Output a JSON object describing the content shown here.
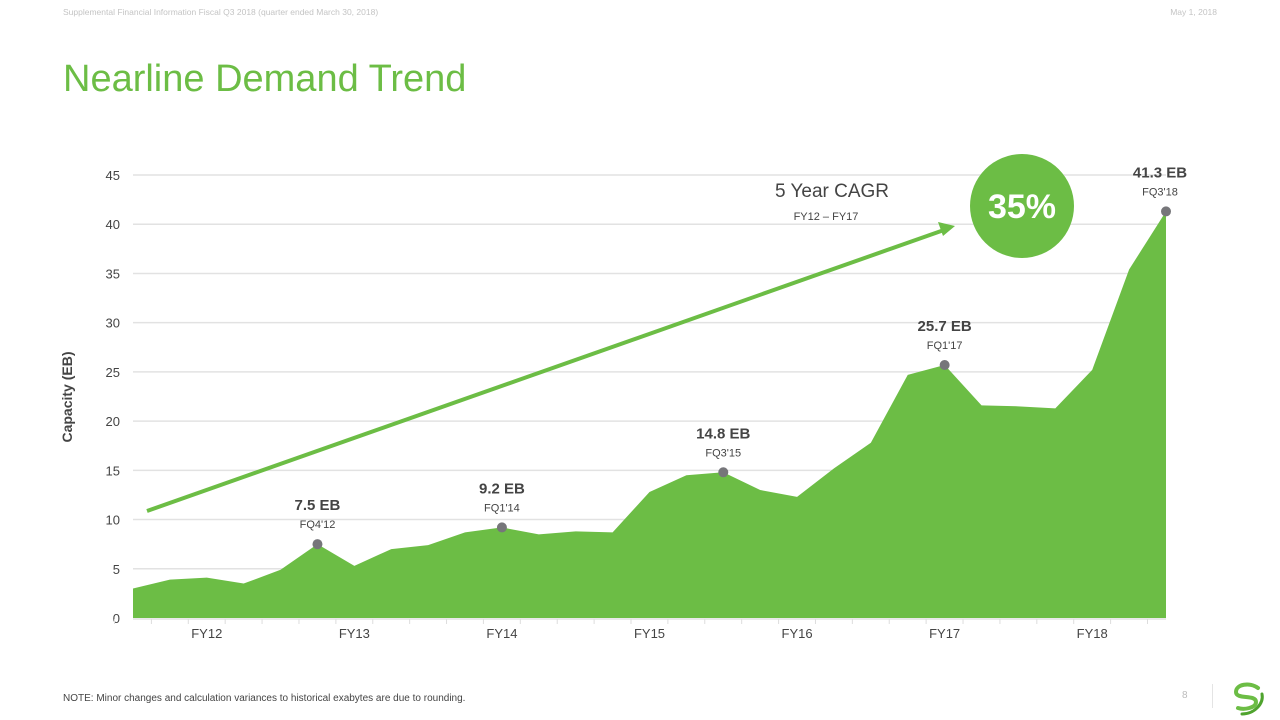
{
  "header": {
    "left_text": "Supplemental Financial Information Fiscal Q3 2018 (quarter ended March 30, 2018)",
    "date": "May 1, 2018"
  },
  "title": "Nearline Demand Trend",
  "footer": {
    "note": "NOTE: Minor changes and calculation variances to historical exabytes are due to rounding.",
    "page_number": "8"
  },
  "cagr": {
    "label": "5 Year CAGR",
    "range": "FY12 – FY17",
    "value": "35%"
  },
  "colors": {
    "accent": "#6cbd45",
    "marker": "#76767a",
    "grid": "#e2e2e2",
    "text": "#444444"
  },
  "chart_data": {
    "type": "area",
    "title": "",
    "xlabel": "",
    "ylabel": "Capacity (EB)",
    "ylim": [
      0,
      45
    ],
    "yticks": [
      0,
      5,
      10,
      15,
      20,
      25,
      30,
      35,
      40,
      45
    ],
    "grid": true,
    "x_tick_labels": [
      "FY12",
      "FY13",
      "FY14",
      "FY15",
      "FY16",
      "FY17",
      "FY18"
    ],
    "values": [
      3.0,
      3.9,
      4.1,
      3.5,
      4.9,
      7.5,
      5.3,
      7.0,
      7.4,
      8.7,
      9.2,
      8.5,
      8.8,
      8.7,
      12.8,
      14.5,
      14.8,
      13.0,
      12.3,
      15.2,
      17.8,
      24.7,
      25.7,
      21.6,
      21.5,
      21.3,
      25.2,
      35.4,
      41.3
    ],
    "annotations": [
      {
        "index": 5,
        "value_label": "7.5 EB",
        "quarter": "FQ4'12"
      },
      {
        "index": 10,
        "value_label": "9.2 EB",
        "quarter": "FQ1'14"
      },
      {
        "index": 16,
        "value_label": "14.8 EB",
        "quarter": "FQ3'15"
      },
      {
        "index": 22,
        "value_label": "25.7 EB",
        "quarter": "FQ1'17"
      },
      {
        "index": 28,
        "value_label": "41.3 EB",
        "quarter": "FQ3'18"
      }
    ]
  }
}
